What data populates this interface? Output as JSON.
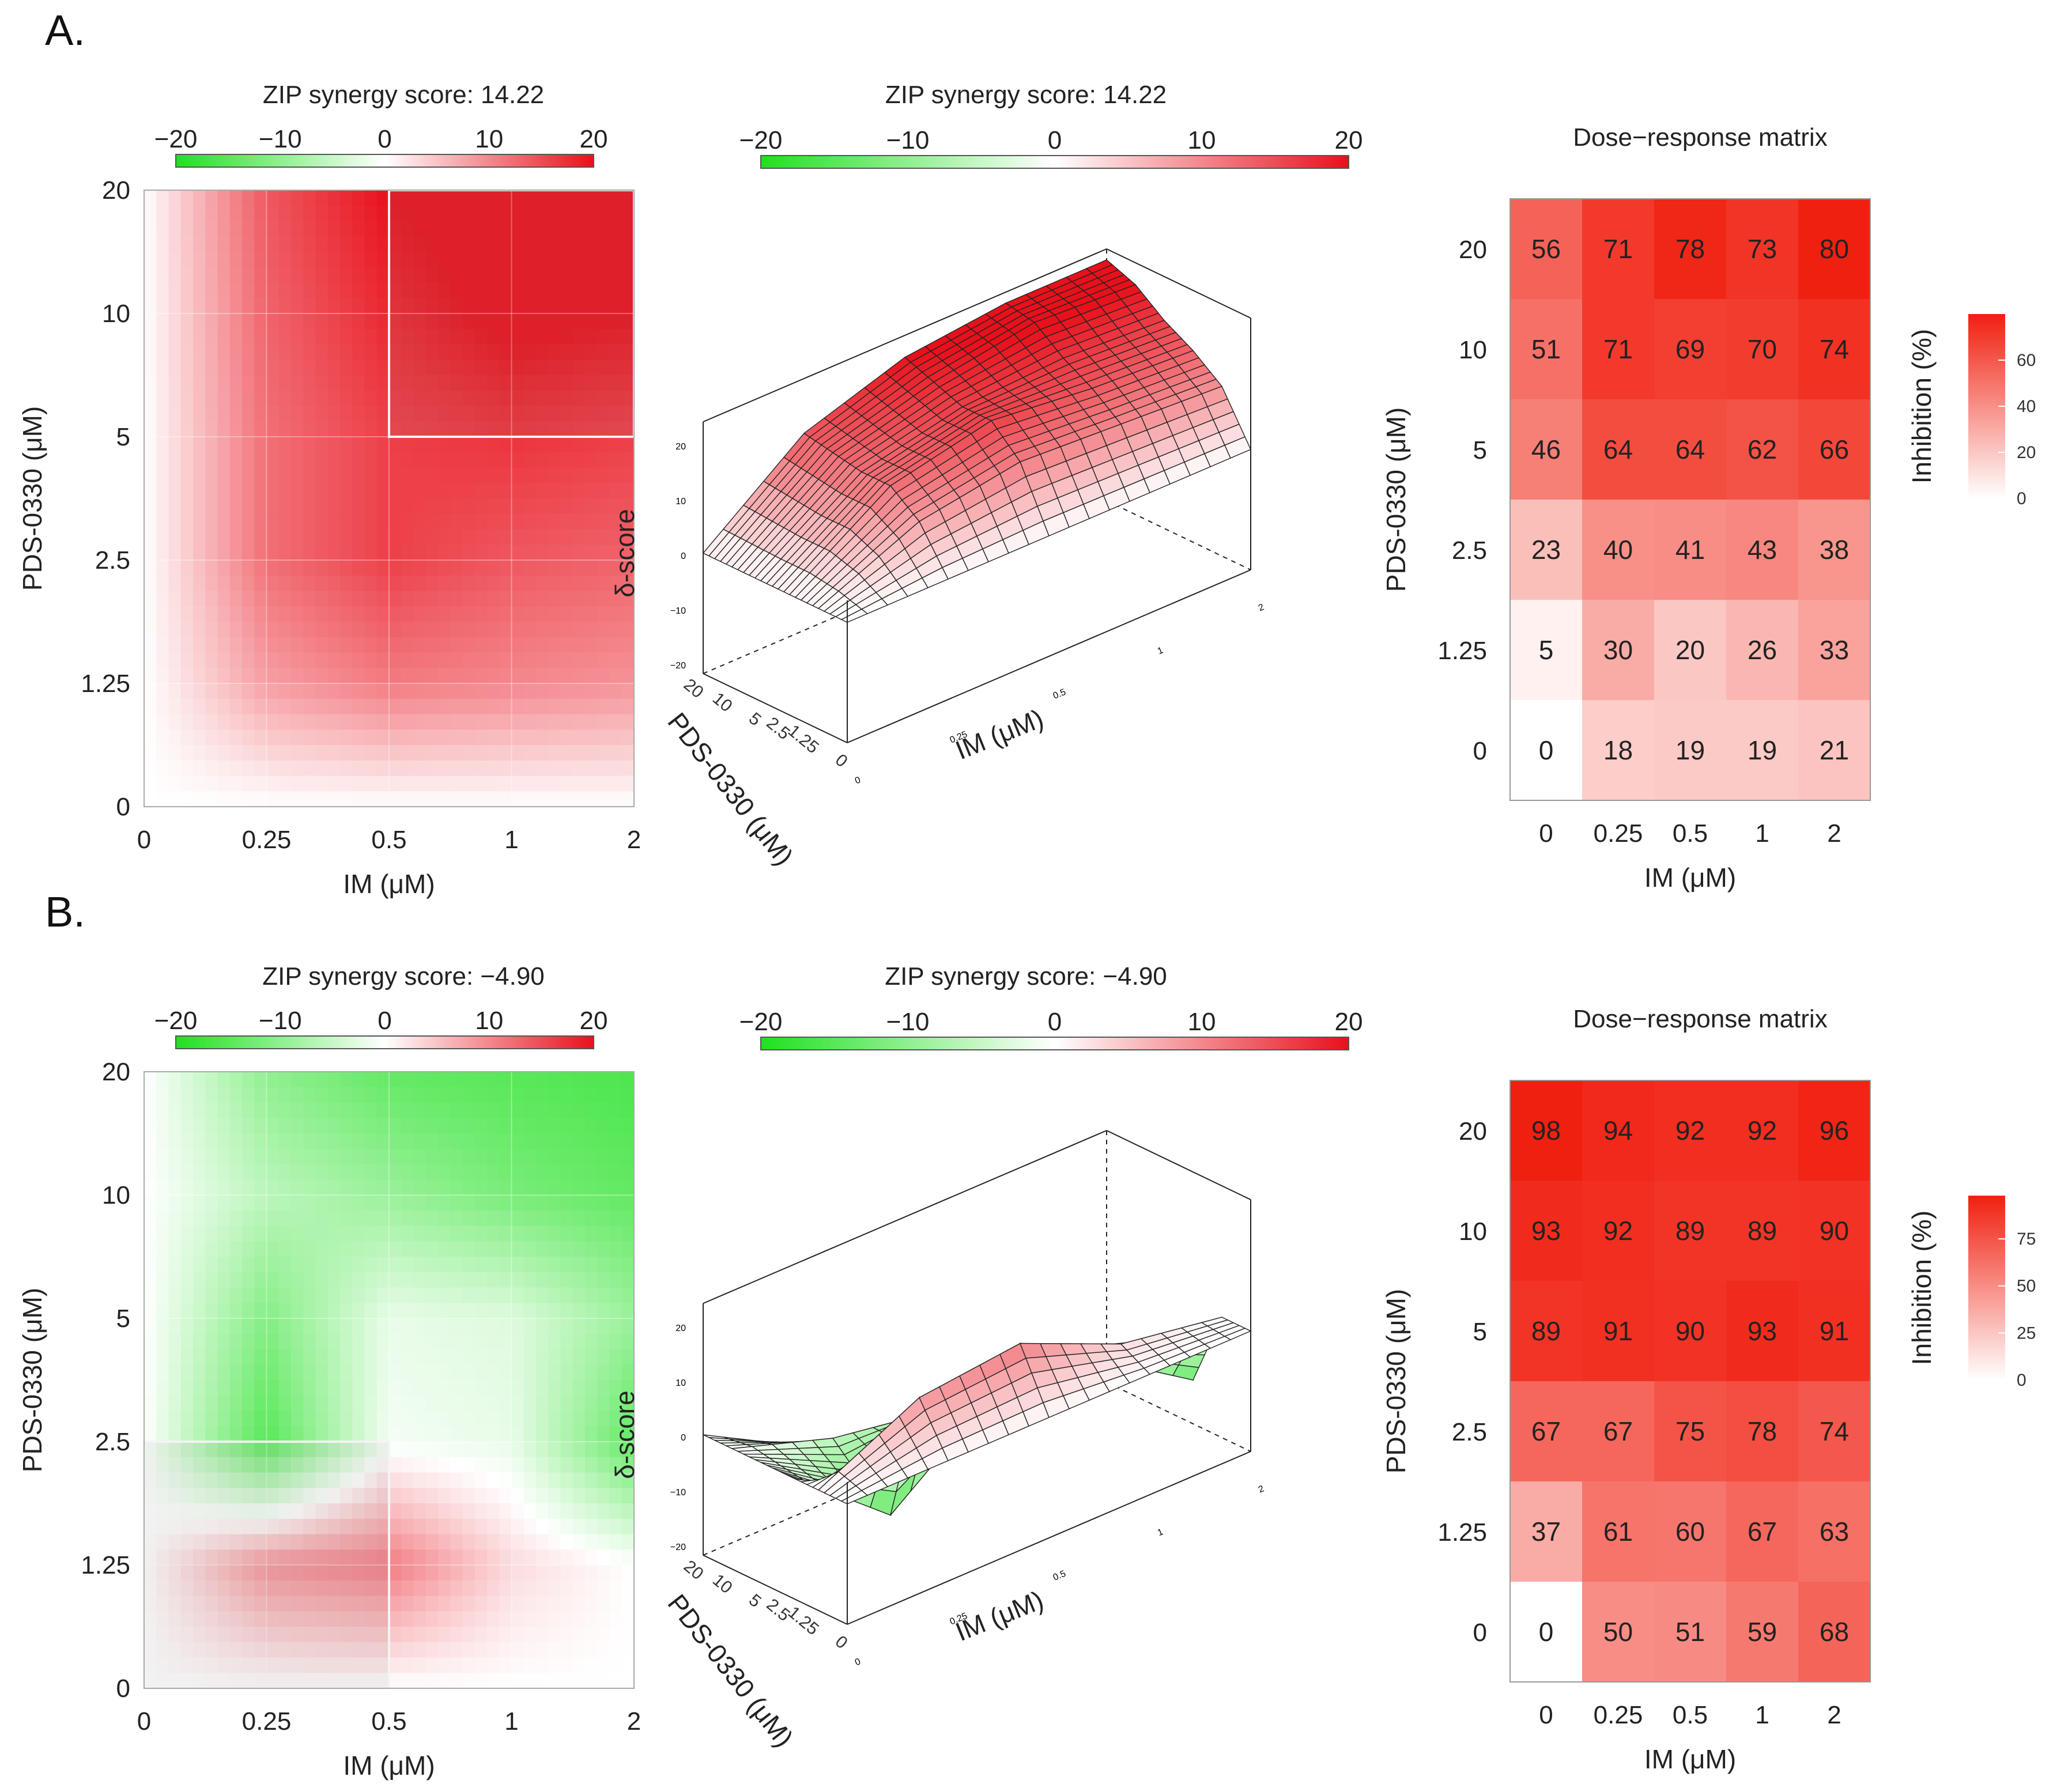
{
  "panels": [
    {
      "label": "A.",
      "zip_title": "ZIP synergy score: 14.22",
      "matrix_title": "Dose−response matrix",
      "colorbar_ticks": [
        "−20",
        "−10",
        "0",
        "10",
        "20"
      ],
      "surface_ylabel": "δ-score",
      "surface_zticks": [
        "20",
        "10",
        "0",
        "−10",
        "−20"
      ],
      "inhibition_label": "Inhibition (%)",
      "inhibition_ticks": [
        "60",
        "40",
        "20",
        "0"
      ],
      "inhibition_max": 80,
      "highlight_box": {
        "x_from": "0.5",
        "x_to": "2",
        "y_from": "5",
        "y_to": "20"
      }
    },
    {
      "label": "B.",
      "zip_title": "ZIP synergy score: −4.90",
      "matrix_title": "Dose−response matrix",
      "colorbar_ticks": [
        "−20",
        "−10",
        "0",
        "10",
        "20"
      ],
      "surface_ylabel": "δ-score",
      "surface_zticks": [
        "20",
        "10",
        "0",
        "−10",
        "−20"
      ],
      "inhibition_label": "Inhibition (%)",
      "inhibition_ticks": [
        "75",
        "50",
        "25",
        "0"
      ],
      "inhibition_max": 98,
      "highlight_box": {
        "x_from": "0",
        "x_to": "0.5",
        "y_from": "0",
        "y_to": "2.5"
      }
    }
  ],
  "axes": {
    "x_label": "IM (μM)",
    "y_label": "PDS-0330 (μM)",
    "x_ticks": [
      "0",
      "0.25",
      "0.5",
      "1",
      "2"
    ],
    "y_ticks": [
      "20",
      "10",
      "5",
      "2.5",
      "1.25",
      "0"
    ]
  },
  "colors": {
    "synergy_red": "#e8101b",
    "antagonism_green": "#20e020",
    "neutral": "#ffffff",
    "inhibition_high": "#f02010"
  },
  "chart_data": [
    {
      "type": "heatmap",
      "title": "ZIP synergy score: 14.22",
      "xlabel": "IM (μM)",
      "ylabel": "PDS-0330 (μM)",
      "x": [
        "0",
        "0.25",
        "0.5",
        "1",
        "2"
      ],
      "y": [
        "20",
        "10",
        "5",
        "2.5",
        "1.25",
        "0"
      ],
      "delta_scores": [
        [
          0,
          14,
          20,
          22,
          22
        ],
        [
          0,
          13,
          18,
          21,
          20
        ],
        [
          0,
          12,
          16,
          17,
          16
        ],
        [
          0,
          12,
          16,
          14,
          13
        ],
        [
          0,
          8,
          11,
          10,
          9
        ],
        [
          0,
          0,
          0,
          0,
          0
        ]
      ],
      "colorbar_range": [
        -20,
        20
      ]
    },
    {
      "type": "heatmap",
      "title": "Dose−response matrix",
      "xlabel": "IM (μM)",
      "ylabel": "PDS-0330 (μM)",
      "x": [
        "0",
        "0.25",
        "0.5",
        "1",
        "2"
      ],
      "y": [
        "20",
        "10",
        "5",
        "2.5",
        "1.25",
        "0"
      ],
      "values": [
        [
          56,
          71,
          78,
          73,
          80
        ],
        [
          51,
          71,
          69,
          70,
          74
        ],
        [
          46,
          64,
          64,
          62,
          66
        ],
        [
          23,
          40,
          41,
          43,
          38
        ],
        [
          5,
          30,
          20,
          26,
          33
        ],
        [
          0,
          18,
          19,
          19,
          21
        ]
      ],
      "legend": "Inhibition (%)"
    },
    {
      "type": "heatmap",
      "title": "ZIP synergy score: −4.90",
      "xlabel": "IM (μM)",
      "ylabel": "PDS-0330 (μM)",
      "x": [
        "0",
        "0.25",
        "0.5",
        "1",
        "2"
      ],
      "y": [
        "20",
        "10",
        "5",
        "2.5",
        "1.25",
        "0"
      ],
      "delta_scores": [
        [
          0,
          -10,
          -14,
          -15,
          -16
        ],
        [
          0,
          -6,
          -9,
          -12,
          -14
        ],
        [
          0,
          -11,
          -2,
          -3,
          -9
        ],
        [
          0,
          -15,
          -1,
          -2,
          -14
        ],
        [
          0,
          9,
          11,
          3,
          0
        ],
        [
          0,
          0,
          0,
          0,
          0
        ]
      ],
      "colorbar_range": [
        -20,
        20
      ]
    },
    {
      "type": "heatmap",
      "title": "Dose−response matrix",
      "xlabel": "IM (μM)",
      "ylabel": "PDS-0330 (μM)",
      "x": [
        "0",
        "0.25",
        "0.5",
        "1",
        "2"
      ],
      "y": [
        "20",
        "10",
        "5",
        "2.5",
        "1.25",
        "0"
      ],
      "values": [
        [
          98,
          94,
          92,
          92,
          96
        ],
        [
          93,
          92,
          89,
          89,
          90
        ],
        [
          89,
          91,
          90,
          93,
          91
        ],
        [
          67,
          67,
          75,
          78,
          74
        ],
        [
          37,
          61,
          60,
          67,
          63
        ],
        [
          0,
          50,
          51,
          59,
          68
        ]
      ],
      "legend": "Inhibition (%)"
    }
  ]
}
